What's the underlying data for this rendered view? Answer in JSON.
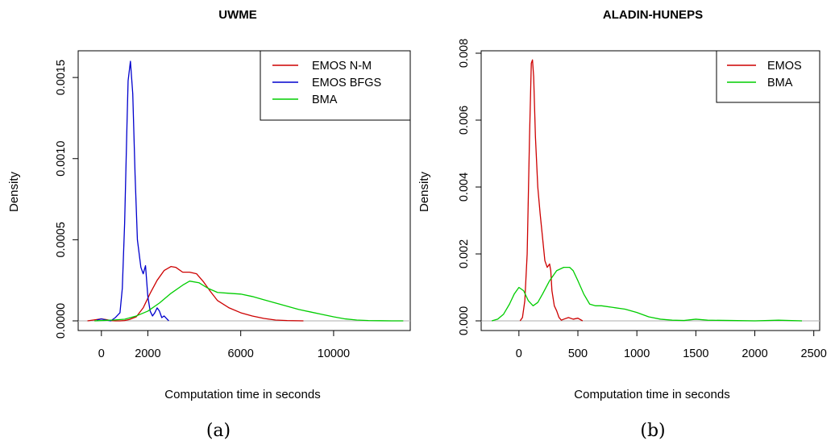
{
  "chart_data": [
    {
      "type": "line",
      "title": "UWME",
      "xlabel": "Computation time in seconds",
      "ylabel": "Density",
      "caption": "(a)",
      "xlim": [
        -1000,
        13300
      ],
      "ylim": [
        0,
        0.0016
      ],
      "xticks": [
        0,
        2000,
        6000,
        10000
      ],
      "xtick_labels": [
        "0",
        "2000",
        "6000",
        "10000"
      ],
      "yticks": [
        0,
        0.0005,
        0.001,
        0.0015
      ],
      "ytick_labels": [
        "0.0000",
        "0.0005",
        "0.0010",
        "0.0015"
      ],
      "baseline": 0,
      "legend_position": "top-right",
      "series": [
        {
          "name": "EMOS N-M",
          "color": "#CD0000",
          "x": [
            -600,
            -200,
            0,
            200,
            400,
            600,
            800,
            1000,
            1200,
            1500,
            1800,
            2100,
            2400,
            2700,
            3000,
            3200,
            3500,
            3800,
            4100,
            4400,
            4700,
            5000,
            5500,
            6000,
            6500,
            7000,
            7500,
            8000,
            8700
          ],
          "y": [
            0,
            8e-06,
            1.2e-05,
            8e-06,
            2e-06,
            0,
            0,
            2e-06,
            8e-06,
            2.5e-05,
            8e-05,
            0.00017,
            0.00025,
            0.00031,
            0.000335,
            0.00033,
            0.0003,
            0.0003,
            0.00029,
            0.00024,
            0.00018,
            0.000125,
            8e-05,
            5e-05,
            3e-05,
            1.5e-05,
            5e-06,
            2e-06,
            0
          ]
        },
        {
          "name": "EMOS BFGS",
          "color": "#0000CD",
          "x": [
            -200,
            0,
            200,
            400,
            600,
            800,
            900,
            1000,
            1050,
            1100,
            1150,
            1250,
            1350,
            1450,
            1550,
            1700,
            1800,
            1900,
            2000,
            2100,
            2200,
            2300,
            2400,
            2500,
            2600,
            2700,
            2800,
            2900
          ],
          "y": [
            5e-06,
            1.2e-05,
            5e-06,
            0,
            2e-05,
            5e-05,
            0.0002,
            0.0006,
            0.0009,
            0.0012,
            0.00148,
            0.0016,
            0.0014,
            0.0009,
            0.0005,
            0.00033,
            0.00029,
            0.00034,
            0.00015,
            6e-05,
            3e-05,
            5e-05,
            8e-05,
            6e-05,
            2e-05,
            3e-05,
            1.5e-05,
            0
          ]
        },
        {
          "name": "BMA",
          "color": "#00CD00",
          "x": [
            -300,
            0,
            500,
            1000,
            1500,
            2000,
            2500,
            3000,
            3500,
            3800,
            4200,
            4600,
            5000,
            5500,
            6000,
            6500,
            7000,
            7500,
            8000,
            8500,
            9000,
            9500,
            10000,
            10500,
            11000,
            11500,
            12000,
            12500,
            13000
          ],
          "y": [
            0,
            2e-06,
            5e-06,
            1e-05,
            3e-05,
            6e-05,
            0.00011,
            0.00017,
            0.00022,
            0.000245,
            0.000235,
            0.0002,
            0.000175,
            0.00017,
            0.000165,
            0.00015,
            0.00013,
            0.00011,
            9e-05,
            7e-05,
            5.5e-05,
            4e-05,
            2.5e-05,
            1.2e-05,
            5e-06,
            2e-06,
            1e-06,
            0,
            0
          ]
        }
      ]
    },
    {
      "type": "line",
      "title": "ALADIN-HUNEPS",
      "xlabel": "Computation time in seconds",
      "ylabel": "Density",
      "caption": "(b)",
      "xlim": [
        -320,
        2550
      ],
      "ylim": [
        0,
        0.008
      ],
      "xticks": [
        0,
        500,
        1000,
        1500,
        2000,
        2500
      ],
      "xtick_labels": [
        "0",
        "500",
        "1000",
        "1500",
        "2000",
        "2500"
      ],
      "yticks": [
        0,
        0.002,
        0.004,
        0.006,
        0.008
      ],
      "ytick_labels": [
        "0.000",
        "0.002",
        "0.004",
        "0.006",
        "0.008"
      ],
      "baseline": 0,
      "legend_position": "top-right",
      "series": [
        {
          "name": "EMOS",
          "color": "#CD0000",
          "x": [
            10,
            30,
            50,
            70,
            90,
            105,
            115,
            125,
            140,
            160,
            180,
            200,
            220,
            240,
            260,
            270,
            280,
            300,
            320,
            340,
            360,
            380,
            420,
            460,
            500,
            540
          ],
          "y": [
            0,
            0.0001,
            0.0006,
            0.002,
            0.0055,
            0.0077,
            0.0078,
            0.0073,
            0.0055,
            0.004,
            0.0032,
            0.0025,
            0.0018,
            0.0016,
            0.0017,
            0.0015,
            0.0009,
            0.00045,
            0.0003,
            0.0001,
            2e-05,
            5e-05,
            0.0001,
            5e-05,
            8e-05,
            0
          ]
        },
        {
          "name": "BMA",
          "color": "#00CD00",
          "x": [
            -230,
            -180,
            -130,
            -80,
            -40,
            0,
            40,
            80,
            120,
            160,
            200,
            260,
            320,
            380,
            430,
            460,
            500,
            550,
            600,
            650,
            700,
            800,
            900,
            1000,
            1100,
            1200,
            1300,
            1400,
            1500,
            1600,
            1800,
            2000,
            2200,
            2400
          ],
          "y": [
            0,
            5e-05,
            0.0002,
            0.0005,
            0.0008,
            0.001,
            0.0009,
            0.0006,
            0.00045,
            0.00055,
            0.0008,
            0.0012,
            0.0015,
            0.0016,
            0.0016,
            0.0015,
            0.0012,
            0.0008,
            0.0005,
            0.00045,
            0.00045,
            0.0004,
            0.00035,
            0.00025,
            0.00012,
            5e-05,
            2e-05,
            1e-05,
            5e-05,
            2e-05,
            1e-05,
            0,
            2e-05,
            0
          ]
        }
      ]
    }
  ]
}
